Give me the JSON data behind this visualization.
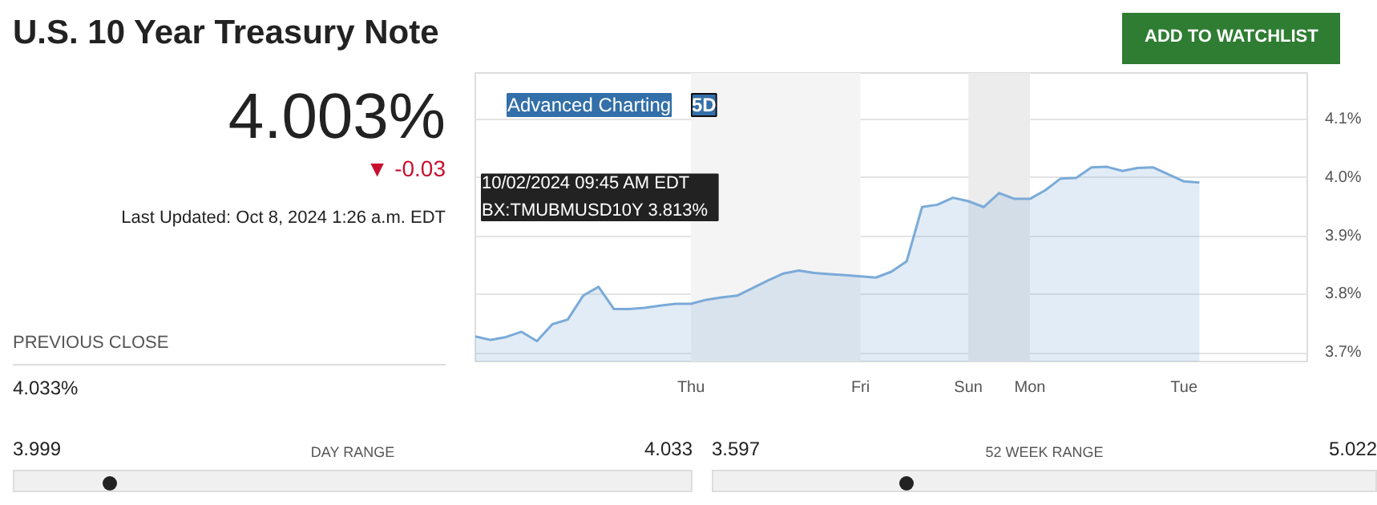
{
  "chart_data": {
    "type": "area",
    "title": "U.S. 10 Year Treasury Note",
    "categories": [
      null,
      null,
      null,
      null,
      null,
      null,
      null,
      null,
      null,
      null,
      null,
      null,
      null,
      null,
      "Thu",
      null,
      null,
      null,
      null,
      null,
      null,
      null,
      null,
      null,
      null,
      "Fri",
      null,
      null,
      null,
      null,
      null,
      null,
      "Sun",
      null,
      null,
      null,
      "Mon",
      null,
      null,
      null,
      null,
      null,
      null,
      null,
      null,
      null,
      "Tue",
      null,
      null,
      null,
      null,
      null,
      null,
      null,
      null
    ],
    "series": [
      {
        "color": "#7aaad8",
        "values": [
          3.728,
          3.722,
          3.727,
          3.736,
          3.72,
          3.749,
          3.757,
          3.798,
          3.813,
          3.775,
          3.775,
          3.777,
          3.781,
          3.784,
          3.784,
          3.791,
          3.795,
          3.798,
          3.811,
          3.824,
          3.836,
          3.841,
          3.837,
          3.835,
          3.833,
          3.831,
          3.829,
          3.839,
          3.857,
          3.95,
          3.954,
          3.966,
          3.96,
          3.95,
          3.974,
          3.964,
          3.964,
          3.979,
          3.999,
          4.0,
          4.018,
          4.019,
          4.012,
          4.017,
          4.018,
          4.006,
          3.994,
          3.992,
          null,
          null,
          null,
          null,
          null,
          null,
          null
        ]
      }
    ],
    "ylim": [
      3.685,
      4.18
    ],
    "yticks": [
      {
        "value": 3.7,
        "label": "3.7%"
      },
      {
        "value": 3.8,
        "label": "3.8%"
      },
      {
        "value": 3.9,
        "label": "3.9%"
      },
      {
        "value": 4.0,
        "label": "4.0%"
      },
      {
        "value": 4.1,
        "label": "4.1%"
      }
    ],
    "grid": "y",
    "bands": [
      {
        "axis": "x",
        "from": "Thu",
        "to": "Fri",
        "color": "#f4f4f4"
      },
      {
        "axis": "x",
        "from": "Sun",
        "to": "Mon",
        "color": "#ececec"
      }
    ],
    "annotations": [
      "10/02/2024 09:45 AM EDT\nBX:TMUBMUSD10Y   3.813%",
      "ADD TO WATCHLIST",
      "Advanced Charting",
      "5D",
      "4.003%",
      "▼ -0.03",
      "Last Updated: Oct 8, 2024 1:26 a.m. EDT",
      "PREVIOUS CLOSE",
      "4.033%",
      "3.999",
      "DAY RANGE",
      "4.033",
      "3.597",
      "52 WEEK RANGE",
      "5.022"
    ]
  }
}
